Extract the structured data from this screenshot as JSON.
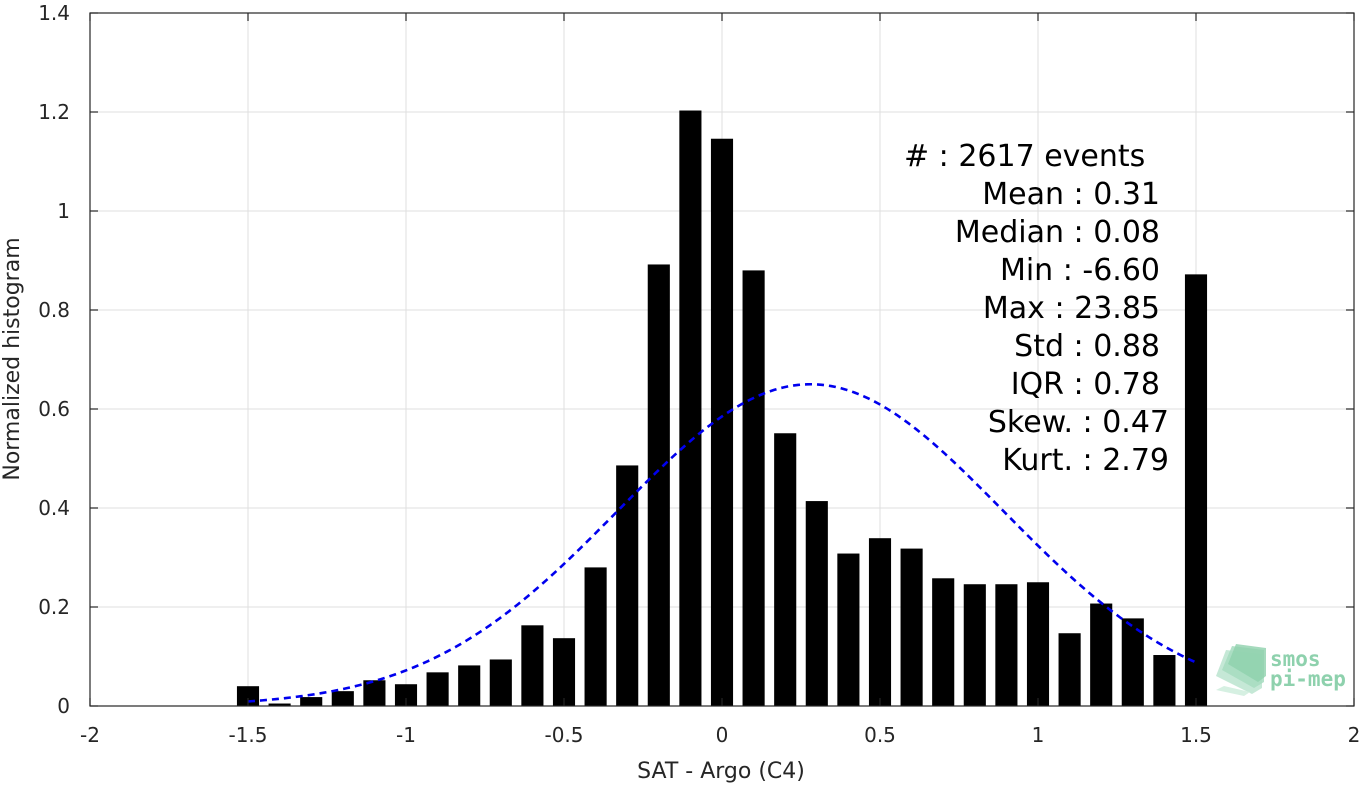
{
  "chart_data": {
    "type": "bar",
    "xlabel": "SAT - Argo (C4)",
    "ylabel": "Normalized histogram",
    "xlim": [
      -2,
      2
    ],
    "ylim": [
      0,
      1.4
    ],
    "xticks": [
      -2,
      -1.5,
      -1,
      -0.5,
      0,
      0.5,
      1,
      1.5,
      2
    ],
    "xtick_labels": [
      "-2",
      "-1.5",
      "-1",
      "-0.5",
      "0",
      "0.5",
      "1",
      "1.5",
      "2"
    ],
    "yticks": [
      0,
      0.2,
      0.4,
      0.6,
      0.8,
      1,
      1.2,
      1.4
    ],
    "ytick_labels": [
      "0",
      "0.2",
      "0.4",
      "0.6",
      "0.8",
      "1",
      "1.2",
      "1.4"
    ],
    "grid": true,
    "bar_width": 0.07,
    "bar_color": "#000000",
    "bars": [
      {
        "x": -1.5,
        "y": 0.04
      },
      {
        "x": -1.4,
        "y": 0.005
      },
      {
        "x": -1.3,
        "y": 0.018
      },
      {
        "x": -1.2,
        "y": 0.03
      },
      {
        "x": -1.1,
        "y": 0.052
      },
      {
        "x": -1.0,
        "y": 0.044
      },
      {
        "x": -0.9,
        "y": 0.068
      },
      {
        "x": -0.8,
        "y": 0.082
      },
      {
        "x": -0.7,
        "y": 0.094
      },
      {
        "x": -0.6,
        "y": 0.163
      },
      {
        "x": -0.5,
        "y": 0.137
      },
      {
        "x": -0.4,
        "y": 0.28
      },
      {
        "x": -0.3,
        "y": 0.486
      },
      {
        "x": -0.2,
        "y": 0.892
      },
      {
        "x": -0.1,
        "y": 1.203
      },
      {
        "x": 0.0,
        "y": 1.146
      },
      {
        "x": 0.1,
        "y": 0.88
      },
      {
        "x": 0.2,
        "y": 0.551
      },
      {
        "x": 0.3,
        "y": 0.414
      },
      {
        "x": 0.4,
        "y": 0.308
      },
      {
        "x": 0.5,
        "y": 0.339
      },
      {
        "x": 0.6,
        "y": 0.318
      },
      {
        "x": 0.7,
        "y": 0.258
      },
      {
        "x": 0.8,
        "y": 0.246
      },
      {
        "x": 0.9,
        "y": 0.246
      },
      {
        "x": 1.0,
        "y": 0.25
      },
      {
        "x": 1.1,
        "y": 0.147
      },
      {
        "x": 1.2,
        "y": 0.207
      },
      {
        "x": 1.3,
        "y": 0.177
      },
      {
        "x": 1.4,
        "y": 0.103
      },
      {
        "x": 1.5,
        "y": 0.872
      }
    ],
    "fit_curve": {
      "style": "dashed",
      "color": "#0000ee",
      "mean": 0.28,
      "sigma": 0.61,
      "peak": 0.65,
      "x_range": [
        -1.5,
        1.5
      ]
    },
    "stats": [
      {
        "label": "#  : 2617 events"
      },
      {
        "label": "Mean : 0.31"
      },
      {
        "label": "Median : 0.08"
      },
      {
        "label": "Min : -6.60"
      },
      {
        "label": "Max : 23.85"
      },
      {
        "label": "Std : 0.88"
      },
      {
        "label": "IQR : 0.78"
      },
      {
        "label": "Skew. : 0.47"
      },
      {
        "label": "Kurt. : 2.79"
      }
    ]
  },
  "logo": {
    "line1": "smos",
    "line2": "pi-mep",
    "color": "#8ed1ad"
  }
}
